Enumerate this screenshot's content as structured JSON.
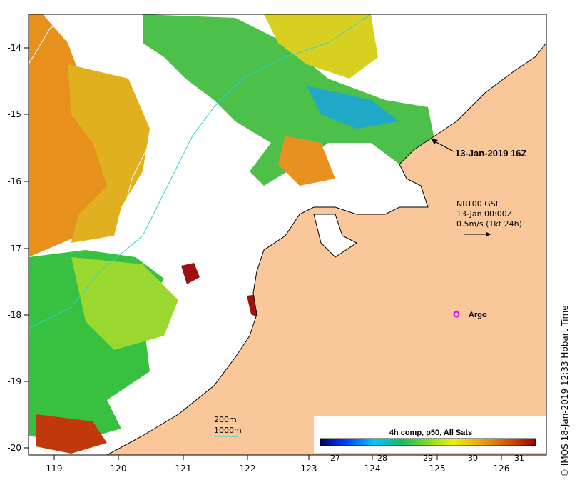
{
  "map": {
    "x_ticks": [
      "119",
      "120",
      "121",
      "122",
      "123",
      "124",
      "125",
      "126"
    ],
    "y_ticks": [
      "-14",
      "-15",
      "-16",
      "-17",
      "-18",
      "-19",
      "-20"
    ],
    "land_color": "#f9c79a",
    "coast_color": "#000000"
  },
  "annotations": {
    "overpass_time": "13-Jan-2019 16Z",
    "current_product": "NRT00 GSL",
    "current_time": "13-Jan 00:00Z",
    "current_scale": "0.5m/s (1kt 24h)",
    "argo_label": "Argo",
    "isobath_200": "200m",
    "isobath_1000": "1000m"
  },
  "colorbar": {
    "title": "4h comp, p50, All Sats",
    "ticks": [
      "27",
      "28",
      "29",
      "30",
      "31"
    ],
    "stops": [
      "#00006e",
      "#0040ff",
      "#00c8ff",
      "#10c060",
      "#7fe020",
      "#f0f000",
      "#f0a010",
      "#d05000",
      "#a00000"
    ]
  },
  "credit": "© IMOS 18-Jan-2019 12:33 Hobart Time"
}
